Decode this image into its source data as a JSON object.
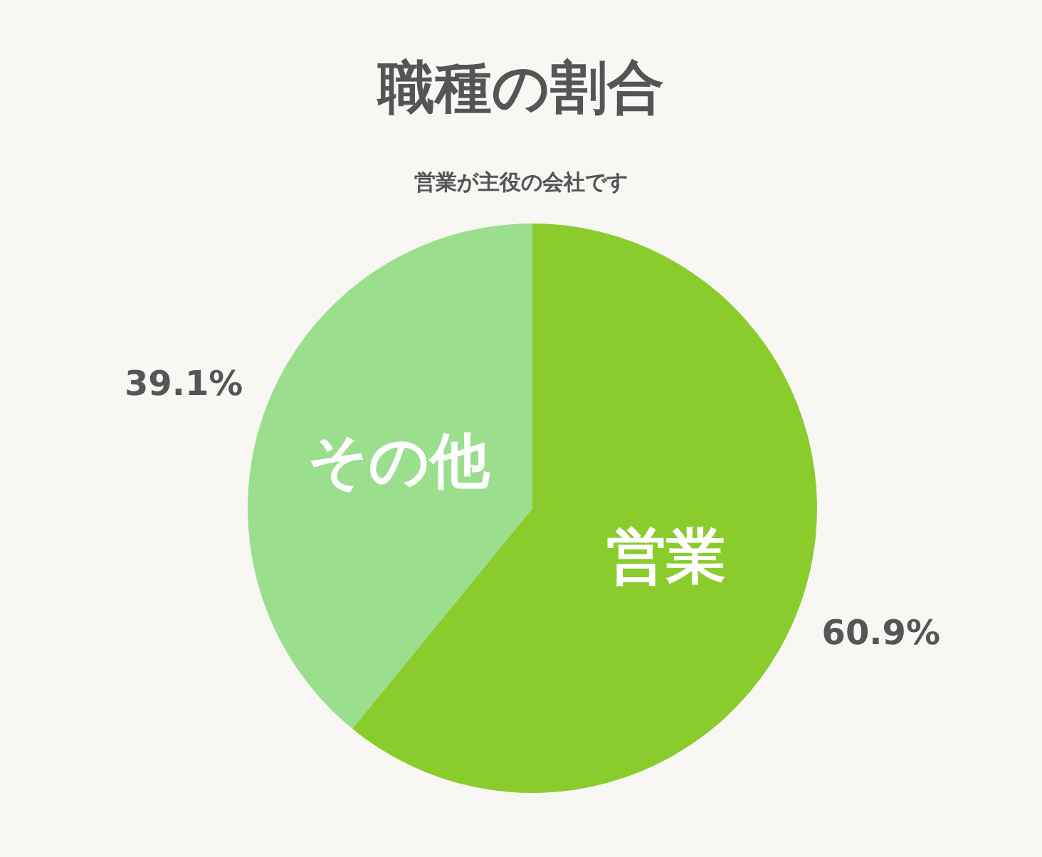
{
  "chart_data": {
    "type": "pie",
    "title": "職種の割合",
    "subtitle": "営業が主役の会社です",
    "categories": [
      "営業",
      "その他"
    ],
    "values": [
      60.9,
      39.1
    ],
    "colors": [
      "#8acc2c",
      "#9ade8e"
    ],
    "value_labels": [
      "60.9%",
      "39.1%"
    ],
    "legend": false
  }
}
